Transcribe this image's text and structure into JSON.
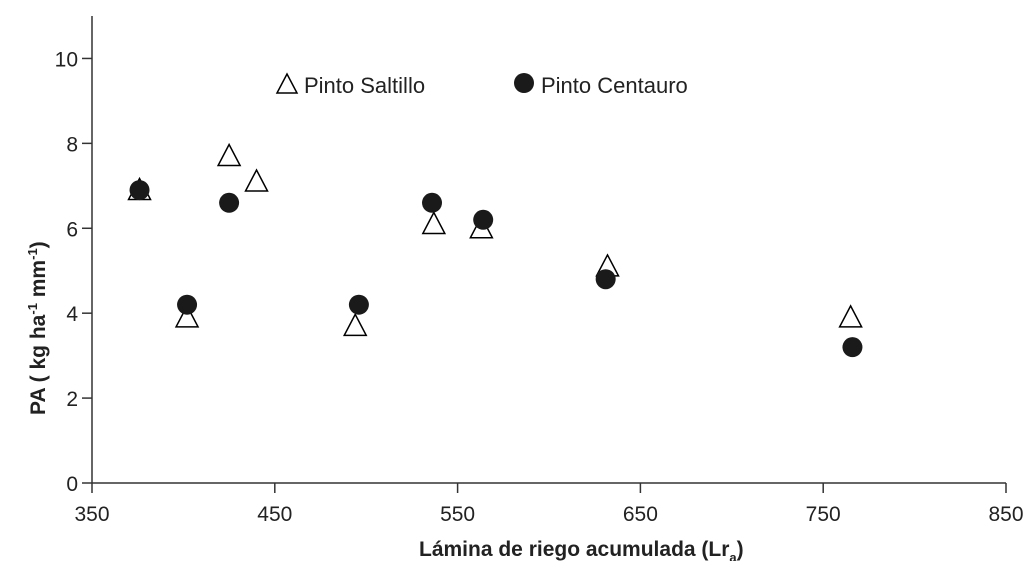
{
  "chart_data": {
    "type": "scatter",
    "title": "",
    "xlabel": "Lámina de riego acumulada (Lr",
    "xlabel_sub": "a",
    "xlabel_end": ")",
    "ylabel": "PA ( kg ha",
    "ylabel_sup1": "-1",
    "ylabel_mid": " mm",
    "ylabel_sup2": "-1",
    "ylabel_end": ")",
    "xlim": [
      350,
      850
    ],
    "ylim": [
      0,
      11
    ],
    "xticks": [
      "350",
      "450",
      "550",
      "650",
      "750",
      "850"
    ],
    "yticks": [
      "0",
      "2",
      "4",
      "6",
      "8",
      "10"
    ],
    "grid": false,
    "legend_position": "top",
    "series": [
      {
        "name": "Pinto Saltillo",
        "marker": "open-triangle",
        "color": "#000000",
        "points": [
          {
            "x": 376,
            "y": 6.9
          },
          {
            "x": 402,
            "y": 3.9
          },
          {
            "x": 425,
            "y": 7.7
          },
          {
            "x": 440,
            "y": 7.1
          },
          {
            "x": 494,
            "y": 3.7
          },
          {
            "x": 537,
            "y": 6.1
          },
          {
            "x": 563,
            "y": 6.0
          },
          {
            "x": 632,
            "y": 5.1
          },
          {
            "x": 765,
            "y": 3.9
          }
        ]
      },
      {
        "name": "Pinto Centauro",
        "marker": "filled-circle",
        "color": "#1a1a1a",
        "points": [
          {
            "x": 376,
            "y": 6.9
          },
          {
            "x": 402,
            "y": 4.2
          },
          {
            "x": 425,
            "y": 6.6
          },
          {
            "x": 496,
            "y": 4.2
          },
          {
            "x": 536,
            "y": 6.6
          },
          {
            "x": 564,
            "y": 6.2
          },
          {
            "x": 631,
            "y": 4.8
          },
          {
            "x": 766,
            "y": 3.2
          }
        ]
      }
    ]
  }
}
